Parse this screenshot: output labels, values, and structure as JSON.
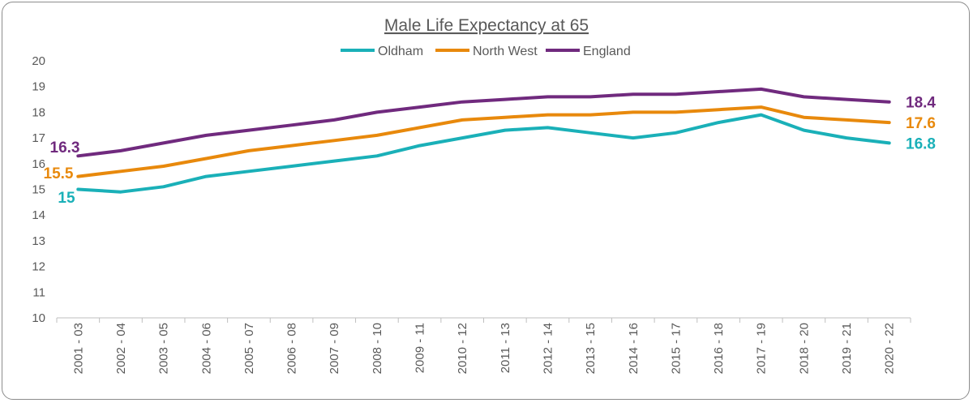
{
  "chart_data": {
    "type": "line",
    "title": "Male Life Expectancy at 65",
    "xlabel": "",
    "ylabel": "",
    "ylim": [
      10,
      20
    ],
    "yticks": [
      10,
      11,
      12,
      13,
      14,
      15,
      16,
      17,
      18,
      19,
      20
    ],
    "grid": false,
    "legend_position": "top",
    "categories": [
      "2001 - 03",
      "2002 - 04",
      "2003 - 05",
      "2004 - 06",
      "2005 - 07",
      "2006 - 08",
      "2007 - 09",
      "2008 - 10",
      "2009 - 11",
      "2010 - 12",
      "2011 - 13",
      "2012 - 14",
      "2013 - 15",
      "2014 - 16",
      "2015 - 17",
      "2016 - 18",
      "2017 - 19",
      "2018 - 20",
      "2019 - 21",
      "2020 - 22"
    ],
    "series": [
      {
        "name": "Oldham",
        "color": "#1ab0b8",
        "values": [
          15.0,
          14.9,
          15.1,
          15.5,
          15.7,
          15.9,
          16.1,
          16.3,
          16.7,
          17.0,
          17.3,
          17.4,
          17.2,
          17.0,
          17.2,
          17.6,
          17.9,
          17.3,
          17.0,
          16.8
        ],
        "start_label": "15",
        "end_label": "16.8"
      },
      {
        "name": "North West",
        "color": "#e8890c",
        "values": [
          15.5,
          15.7,
          15.9,
          16.2,
          16.5,
          16.7,
          16.9,
          17.1,
          17.4,
          17.7,
          17.8,
          17.9,
          17.9,
          18.0,
          18.0,
          18.1,
          18.2,
          17.8,
          17.7,
          17.6
        ],
        "start_label": "15.5",
        "end_label": "17.6"
      },
      {
        "name": "England",
        "color": "#702a7e",
        "values": [
          16.3,
          16.5,
          16.8,
          17.1,
          17.3,
          17.5,
          17.7,
          18.0,
          18.2,
          18.4,
          18.5,
          18.6,
          18.6,
          18.7,
          18.7,
          18.8,
          18.9,
          18.6,
          18.5,
          18.4
        ],
        "start_label": "16.3",
        "end_label": "18.4"
      }
    ]
  }
}
